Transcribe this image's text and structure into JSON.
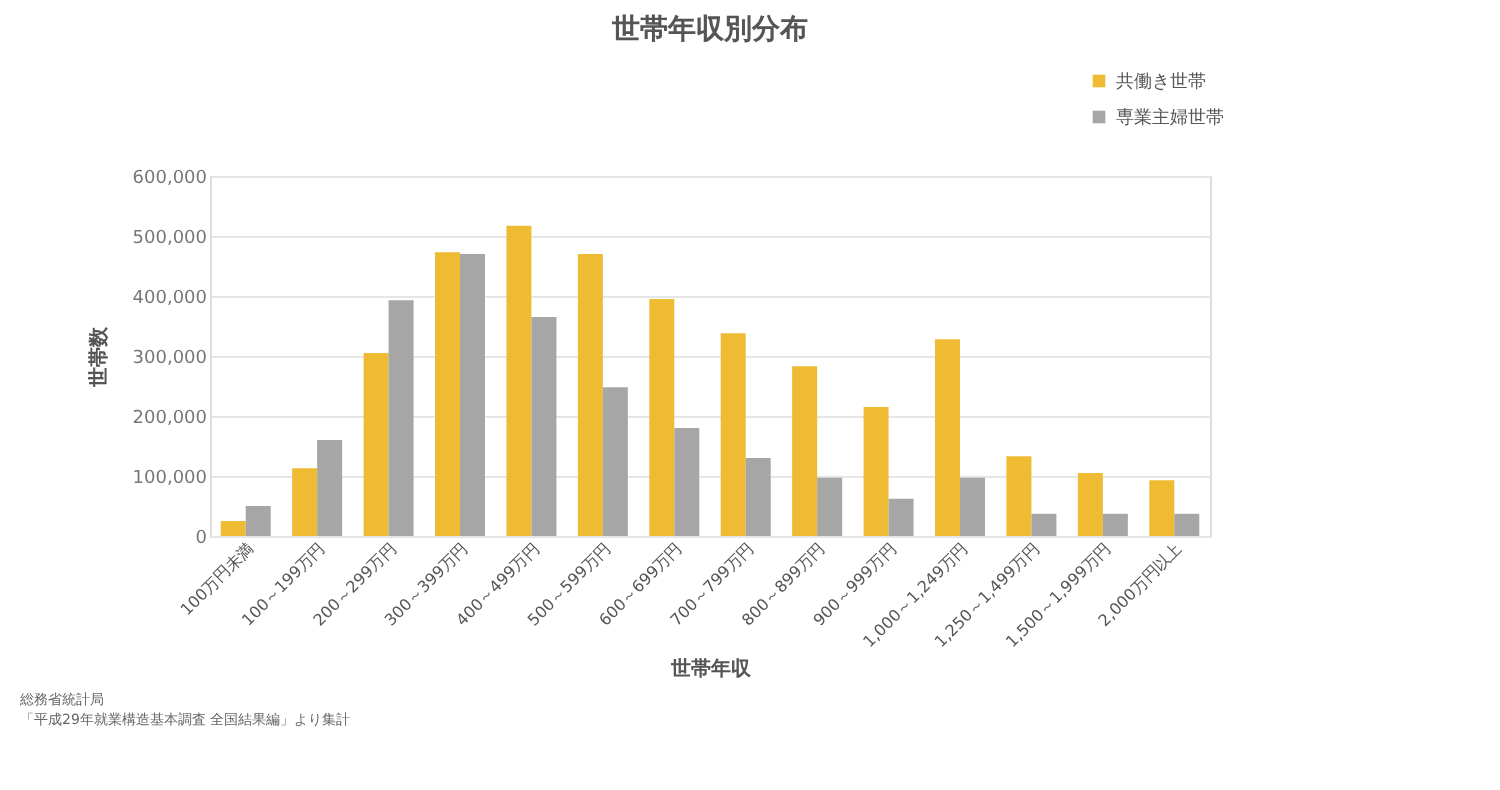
{
  "chart_data": {
    "type": "bar",
    "title": "世帯年収別分布",
    "xlabel": "世帯年収",
    "ylabel": "世帯数",
    "categories": [
      "100万円未満",
      "100～199万円",
      "200～299万円",
      "300～399万円",
      "400～499万円",
      "500～599万円",
      "600～699万円",
      "700～799万円",
      "800～899万円",
      "900～999万円",
      "1,000～1,249万円",
      "1,250～1,499万円",
      "1,500～1,999万円",
      "2,000万円以上"
    ],
    "series": [
      {
        "name": "共働き世帯",
        "color": "#eebb33",
        "values": [
          25000,
          113000,
          305000,
          473000,
          517000,
          470000,
          395000,
          338000,
          283000,
          215000,
          328000,
          133000,
          105000,
          93000
        ]
      },
      {
        "name": "専業主婦世帯",
        "color": "#a6a6a6",
        "values": [
          50000,
          160000,
          393000,
          470000,
          365000,
          248000,
          180000,
          130000,
          97000,
          62000,
          97000,
          37000,
          37000,
          37000
        ]
      }
    ],
    "ylim": [
      0,
      600000
    ],
    "yticks": [
      0,
      {
        "value": 100000,
        "label": "100,000"
      },
      {
        "value": 200000,
        "label": "200,000"
      },
      {
        "value": 300000,
        "label": "300,000"
      },
      {
        "value": 400000,
        "label": "400,000"
      },
      {
        "value": 500000,
        "label": "500,000"
      },
      {
        "value": 600000,
        "label": "600,000"
      }
    ],
    "grid": "y",
    "legend": "top right",
    "annotations": [
      "総務省統計局",
      "「平成29年就業構造基本調査 全国結果編」より集計"
    ]
  }
}
